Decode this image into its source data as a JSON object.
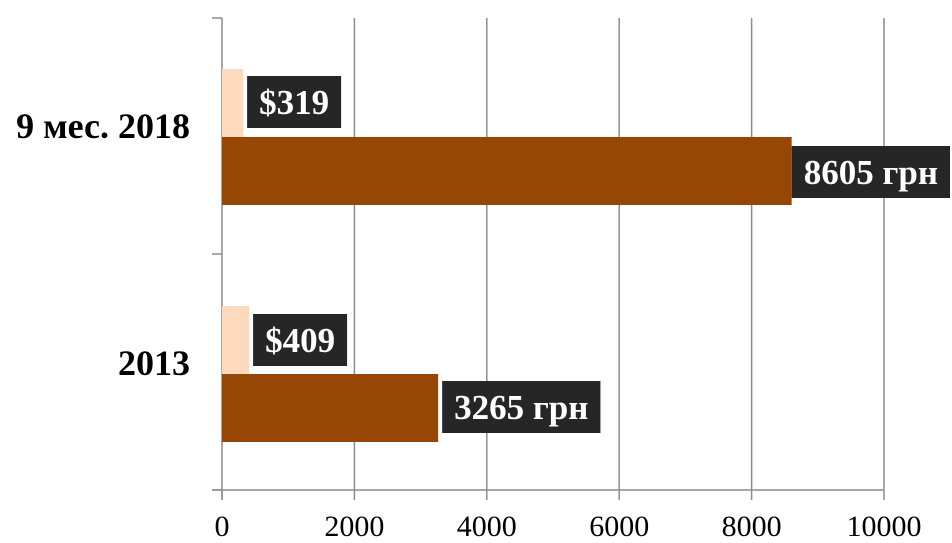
{
  "chart_data": {
    "type": "bar",
    "orientation": "horizontal",
    "categories": [
      "9 мес. 2018",
      "2013"
    ],
    "series": [
      {
        "values": [
          319,
          409
        ],
        "labels": [
          "$319",
          "$409"
        ],
        "color": "#fdd9bd"
      },
      {
        "values": [
          8605,
          3265
        ],
        "labels": [
          "8605 грн",
          "3265 грн"
        ],
        "color": "#964706"
      }
    ],
    "xlim": [
      0,
      10000
    ],
    "xticks": [
      0,
      2000,
      4000,
      6000,
      8000,
      10000
    ],
    "tick_labels": [
      "0",
      "2000",
      "4000",
      "6000",
      "8000",
      "10000"
    ],
    "grid": true,
    "legend": "none",
    "data_label_background": "#262626",
    "data_label_color": "#ffffff"
  }
}
